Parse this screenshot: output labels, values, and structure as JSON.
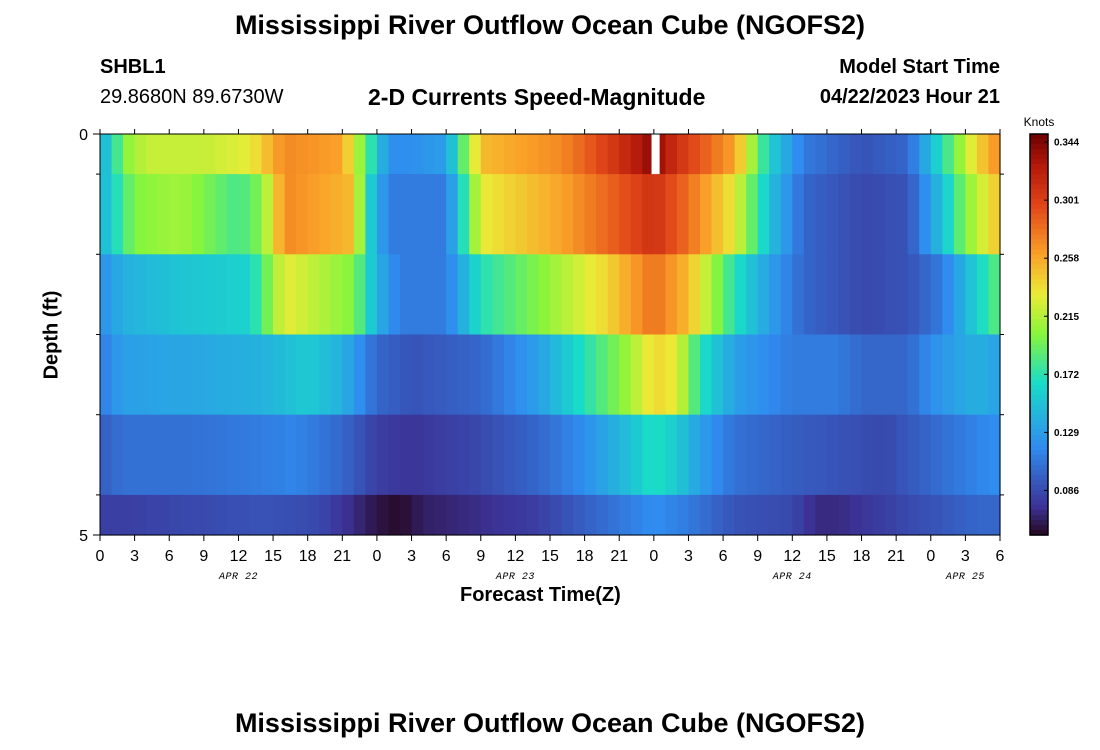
{
  "page": {
    "title": "Mississippi River Outflow Ocean Cube (NGOFS2)",
    "title_repeat": "Mississippi River Outflow Ocean Cube (NGOFS2)",
    "station_id": "SHBL1",
    "coordinates": "29.8680N  89.6730W",
    "subtitle": "2-D Currents Speed-Magnitude",
    "model_start_label": "Model Start Time",
    "model_start_value": "04/22/2023 Hour 21"
  },
  "chart_data": {
    "type": "heatmap",
    "title": "2-D Currents Speed-Magnitude",
    "xlabel": "Forecast Time(Z)",
    "ylabel": "Depth (ft)",
    "colorbar_label": "Knots",
    "colorbar_ticks": [
      0.344,
      0.301,
      0.258,
      0.215,
      0.172,
      0.129,
      0.086
    ],
    "colorbar_range": [
      0.053,
      0.35
    ],
    "x_range_hours": [
      0,
      78
    ],
    "y_range": [
      0,
      5
    ],
    "x_ticks": [
      "0",
      "3",
      "6",
      "9",
      "12",
      "15",
      "18",
      "21",
      "0",
      "3",
      "6",
      "9",
      "12",
      "15",
      "18",
      "21",
      "0",
      "3",
      "6",
      "9",
      "12",
      "15",
      "18",
      "21",
      "0",
      "3",
      "6"
    ],
    "y_ticks": [
      "0",
      "5"
    ],
    "date_labels": [
      {
        "label": "APR 22",
        "hour": 12
      },
      {
        "label": "APR 23",
        "hour": 36
      },
      {
        "label": "APR 24",
        "hour": 60
      },
      {
        "label": "APR 25",
        "hour": 75
      }
    ],
    "missing_data_hour": 48,
    "layer_depth_ranges": [
      [
        0,
        0.5
      ],
      [
        0.5,
        1.5
      ],
      [
        1.5,
        2.5
      ],
      [
        2.5,
        3.5
      ],
      [
        3.5,
        4.5
      ],
      [
        4.5,
        5
      ]
    ],
    "layers": [
      {
        "keys": [
          [
            0,
            0.14
          ],
          [
            1,
            0.16
          ],
          [
            2,
            0.2
          ],
          [
            4,
            0.22
          ],
          [
            9,
            0.22
          ],
          [
            13,
            0.23
          ],
          [
            16,
            0.27
          ],
          [
            21,
            0.26
          ],
          [
            23,
            0.19
          ],
          [
            25,
            0.12
          ],
          [
            27,
            0.12
          ],
          [
            30,
            0.13
          ],
          [
            33,
            0.25
          ],
          [
            40,
            0.27
          ],
          [
            45,
            0.31
          ],
          [
            48,
            0.34
          ],
          [
            50,
            0.31
          ],
          [
            55,
            0.26
          ],
          [
            58,
            0.16
          ],
          [
            61,
            0.11
          ],
          [
            66,
            0.09
          ],
          [
            70,
            0.1
          ],
          [
            73,
            0.17
          ],
          [
            76,
            0.24
          ],
          [
            78,
            0.27
          ]
        ]
      },
      {
        "keys": [
          [
            0,
            0.14
          ],
          [
            1,
            0.16
          ],
          [
            3,
            0.2
          ],
          [
            7,
            0.21
          ],
          [
            12,
            0.18
          ],
          [
            14,
            0.2
          ],
          [
            16,
            0.27
          ],
          [
            22,
            0.25
          ],
          [
            23,
            0.17
          ],
          [
            25,
            0.11
          ],
          [
            30,
            0.11
          ],
          [
            33,
            0.23
          ],
          [
            40,
            0.26
          ],
          [
            45,
            0.29
          ],
          [
            48,
            0.31
          ],
          [
            51,
            0.28
          ],
          [
            55,
            0.23
          ],
          [
            58,
            0.15
          ],
          [
            61,
            0.1
          ],
          [
            66,
            0.085
          ],
          [
            70,
            0.09
          ],
          [
            73,
            0.15
          ],
          [
            75,
            0.2
          ],
          [
            78,
            0.25
          ]
        ]
      },
      {
        "keys": [
          [
            0,
            0.12
          ],
          [
            2,
            0.14
          ],
          [
            6,
            0.15
          ],
          [
            13,
            0.16
          ],
          [
            16,
            0.23
          ],
          [
            22,
            0.2
          ],
          [
            24,
            0.14
          ],
          [
            26,
            0.11
          ],
          [
            30,
            0.11
          ],
          [
            33,
            0.17
          ],
          [
            38,
            0.2
          ],
          [
            44,
            0.24
          ],
          [
            48,
            0.28
          ],
          [
            51,
            0.25
          ],
          [
            55,
            0.17
          ],
          [
            58,
            0.13
          ],
          [
            61,
            0.1
          ],
          [
            66,
            0.085
          ],
          [
            70,
            0.09
          ],
          [
            73,
            0.11
          ],
          [
            76,
            0.16
          ],
          [
            78,
            0.19
          ]
        ]
      },
      {
        "keys": [
          [
            0,
            0.11
          ],
          [
            2,
            0.13
          ],
          [
            9,
            0.135
          ],
          [
            14,
            0.14
          ],
          [
            18,
            0.155
          ],
          [
            21,
            0.14
          ],
          [
            24,
            0.1
          ],
          [
            27,
            0.09
          ],
          [
            33,
            0.1
          ],
          [
            38,
            0.13
          ],
          [
            42,
            0.17
          ],
          [
            46,
            0.21
          ],
          [
            48,
            0.24
          ],
          [
            50,
            0.23
          ],
          [
            52,
            0.17
          ],
          [
            55,
            0.13
          ],
          [
            60,
            0.11
          ],
          [
            64,
            0.11
          ],
          [
            66,
            0.1
          ],
          [
            70,
            0.1
          ],
          [
            72,
            0.12
          ],
          [
            76,
            0.14
          ],
          [
            78,
            0.13
          ]
        ]
      },
      {
        "keys": [
          [
            0,
            0.095
          ],
          [
            2,
            0.105
          ],
          [
            8,
            0.105
          ],
          [
            13,
            0.11
          ],
          [
            17,
            0.115
          ],
          [
            21,
            0.1
          ],
          [
            24,
            0.08
          ],
          [
            27,
            0.075
          ],
          [
            33,
            0.085
          ],
          [
            38,
            0.1
          ],
          [
            42,
            0.12
          ],
          [
            46,
            0.15
          ],
          [
            48,
            0.17
          ],
          [
            50,
            0.155
          ],
          [
            52,
            0.13
          ],
          [
            55,
            0.105
          ],
          [
            60,
            0.095
          ],
          [
            64,
            0.09
          ],
          [
            68,
            0.085
          ],
          [
            72,
            0.1
          ],
          [
            76,
            0.115
          ],
          [
            78,
            0.12
          ]
        ]
      },
      {
        "keys": [
          [
            0,
            0.08
          ],
          [
            2,
            0.08
          ],
          [
            8,
            0.085
          ],
          [
            14,
            0.09
          ],
          [
            19,
            0.085
          ],
          [
            22,
            0.07
          ],
          [
            24,
            0.06
          ],
          [
            26,
            0.055
          ],
          [
            28,
            0.065
          ],
          [
            32,
            0.07
          ],
          [
            38,
            0.08
          ],
          [
            43,
            0.1
          ],
          [
            48,
            0.12
          ],
          [
            51,
            0.11
          ],
          [
            55,
            0.09
          ],
          [
            60,
            0.085
          ],
          [
            62,
            0.07
          ],
          [
            64,
            0.07
          ],
          [
            68,
            0.08
          ],
          [
            72,
            0.09
          ],
          [
            76,
            0.1
          ],
          [
            78,
            0.1
          ]
        ]
      }
    ]
  }
}
